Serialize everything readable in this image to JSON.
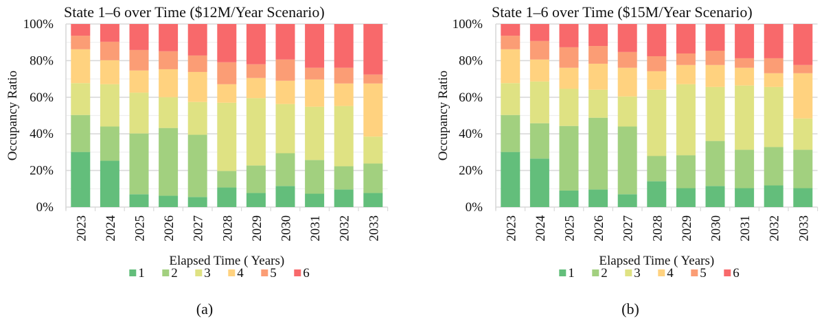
{
  "chart_data": [
    {
      "type": "bar",
      "stacked": true,
      "panel_label": "(a)",
      "title": "State 1–6 over Time ($12M/Year Scenario)",
      "xlabel": "Elapsed Time ( Years)",
      "ylabel": "Occupancy Ratio",
      "ylim": [
        0,
        100
      ],
      "yticks": [
        "0%",
        "20%",
        "40%",
        "60%",
        "80%",
        "100%"
      ],
      "grid": true,
      "legend": "bottom",
      "categories": [
        "2023",
        "2024",
        "2025",
        "2026",
        "2027",
        "2028",
        "2029",
        "2030",
        "2031",
        "2032",
        "2033"
      ],
      "series": [
        {
          "name": "1",
          "color": "#63BE7B",
          "values": [
            30.1,
            25.3,
            7.0,
            6.2,
            5.5,
            10.7,
            7.7,
            11.5,
            7.3,
            9.6,
            7.7
          ]
        },
        {
          "name": "2",
          "color": "#A2D07F",
          "values": [
            20.2,
            18.7,
            33.2,
            37.0,
            34.0,
            9.0,
            15.0,
            17.9,
            18.4,
            12.7,
            16.1
          ]
        },
        {
          "name": "3",
          "color": "#DFE283",
          "values": [
            17.4,
            23.1,
            22.3,
            16.8,
            17.9,
            37.3,
            36.8,
            26.9,
            29.1,
            32.9,
            14.7
          ]
        },
        {
          "name": "4",
          "color": "#FFD27F",
          "values": [
            18.5,
            13.1,
            12.1,
            15.3,
            16.4,
            10.1,
            11.0,
            12.7,
            14.9,
            12.3,
            29.0
          ]
        },
        {
          "name": "5",
          "color": "#FB9D75",
          "values": [
            7.4,
            10.1,
            11.2,
            9.8,
            9.0,
            12.0,
            7.5,
            11.6,
            6.4,
            8.6,
            4.9
          ]
        },
        {
          "name": "6",
          "color": "#F8696B",
          "values": [
            6.4,
            9.7,
            14.2,
            14.9,
            17.2,
            20.9,
            22.0,
            19.4,
            23.9,
            23.9,
            27.6
          ]
        }
      ]
    },
    {
      "type": "bar",
      "stacked": true,
      "panel_label": "(b)",
      "title": "State 1–6 over Time ($15M/Year Scenario)",
      "xlabel": "Elapsed Time ( Years)",
      "ylabel": "Occupancy Ratio",
      "ylim": [
        0,
        100
      ],
      "yticks": [
        "0%",
        "20%",
        "40%",
        "60%",
        "80%",
        "100%"
      ],
      "grid": true,
      "legend": "bottom",
      "categories": [
        "2023",
        "2024",
        "2025",
        "2026",
        "2027",
        "2028",
        "2029",
        "2030",
        "2031",
        "2032",
        "2033"
      ],
      "series": [
        {
          "name": "1",
          "color": "#63BE7B",
          "values": [
            30.1,
            26.5,
            9.0,
            9.6,
            7.0,
            14.1,
            10.3,
            11.5,
            10.3,
            11.8,
            10.3
          ]
        },
        {
          "name": "2",
          "color": "#A2D07F",
          "values": [
            20.2,
            19.3,
            35.3,
            39.2,
            37.0,
            13.8,
            18.0,
            24.6,
            21.0,
            21.0,
            21.0
          ]
        },
        {
          "name": "3",
          "color": "#DFE283",
          "values": [
            17.4,
            22.8,
            20.3,
            15.3,
            16.4,
            36.2,
            38.8,
            29.5,
            35.1,
            32.8,
            17.1
          ]
        },
        {
          "name": "4",
          "color": "#FFD27F",
          "values": [
            18.5,
            12.0,
            11.5,
            14.2,
            15.7,
            10.1,
            10.5,
            12.0,
            9.7,
            7.5,
            24.7
          ]
        },
        {
          "name": "5",
          "color": "#FB9D75",
          "values": [
            7.4,
            10.1,
            11.2,
            9.7,
            8.6,
            8.2,
            6.3,
            7.8,
            5.2,
            8.2,
            4.5
          ]
        },
        {
          "name": "6",
          "color": "#F8696B",
          "values": [
            6.4,
            9.3,
            12.7,
            12.0,
            15.3,
            17.6,
            16.1,
            14.6,
            18.7,
            18.7,
            22.4
          ]
        }
      ]
    }
  ]
}
